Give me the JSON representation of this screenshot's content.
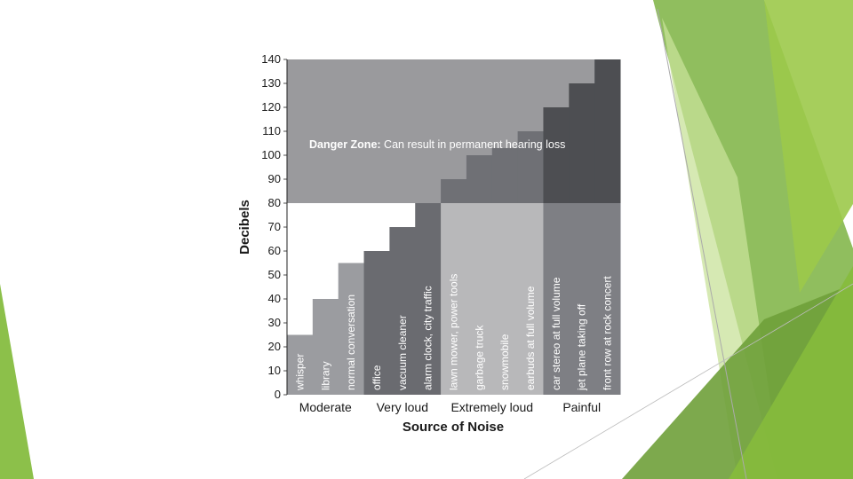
{
  "colors": {
    "danger_zone": "#9a9a9d",
    "white_region": "#ffffff",
    "moderate": "#9b9ca0",
    "very_loud": "#6a6b70",
    "extremely_loud": "#b8b8ba",
    "extremely_loud_tall": "#6f7075",
    "painful": "#7e7f84",
    "painful_tall": "#4d4e52",
    "accent_green_light": "#9cc94a",
    "accent_green_dark": "#6fa03a"
  },
  "chart_data": {
    "type": "bar",
    "ylabel": "Decibels",
    "xlabel": "Source of Noise",
    "ylim": [
      0,
      140
    ],
    "yticks": [
      0,
      10,
      20,
      30,
      40,
      50,
      60,
      70,
      80,
      90,
      100,
      110,
      120,
      130,
      140
    ],
    "danger_threshold": 80,
    "danger_zone": {
      "label_bold": "Danger Zone:",
      "label_rest": " Can result in permanent hearing loss"
    },
    "groups": [
      {
        "name": "Moderate",
        "categories": [
          "whisper",
          "library",
          "normal conversation"
        ],
        "values": [
          25,
          40,
          55
        ],
        "color_key": "moderate"
      },
      {
        "name": "Very loud",
        "categories": [
          "office",
          "vacuum cleaner",
          "alarm clock, city traffic"
        ],
        "values": [
          60,
          70,
          80
        ],
        "color_key": "very_loud"
      },
      {
        "name": "Extremely loud",
        "categories": [
          "lawn mower, power tools",
          "garbage truck",
          "snowmobile",
          "earbuds at full volume"
        ],
        "values": [
          90,
          100,
          103,
          110
        ],
        "color_key": "extremely_loud"
      },
      {
        "name": "Painful",
        "categories": [
          "car stereo at full volume",
          "jet plane taking off",
          "front row at rock concert"
        ],
        "values": [
          120,
          130,
          140
        ],
        "color_key": "painful"
      }
    ],
    "grid": false
  }
}
